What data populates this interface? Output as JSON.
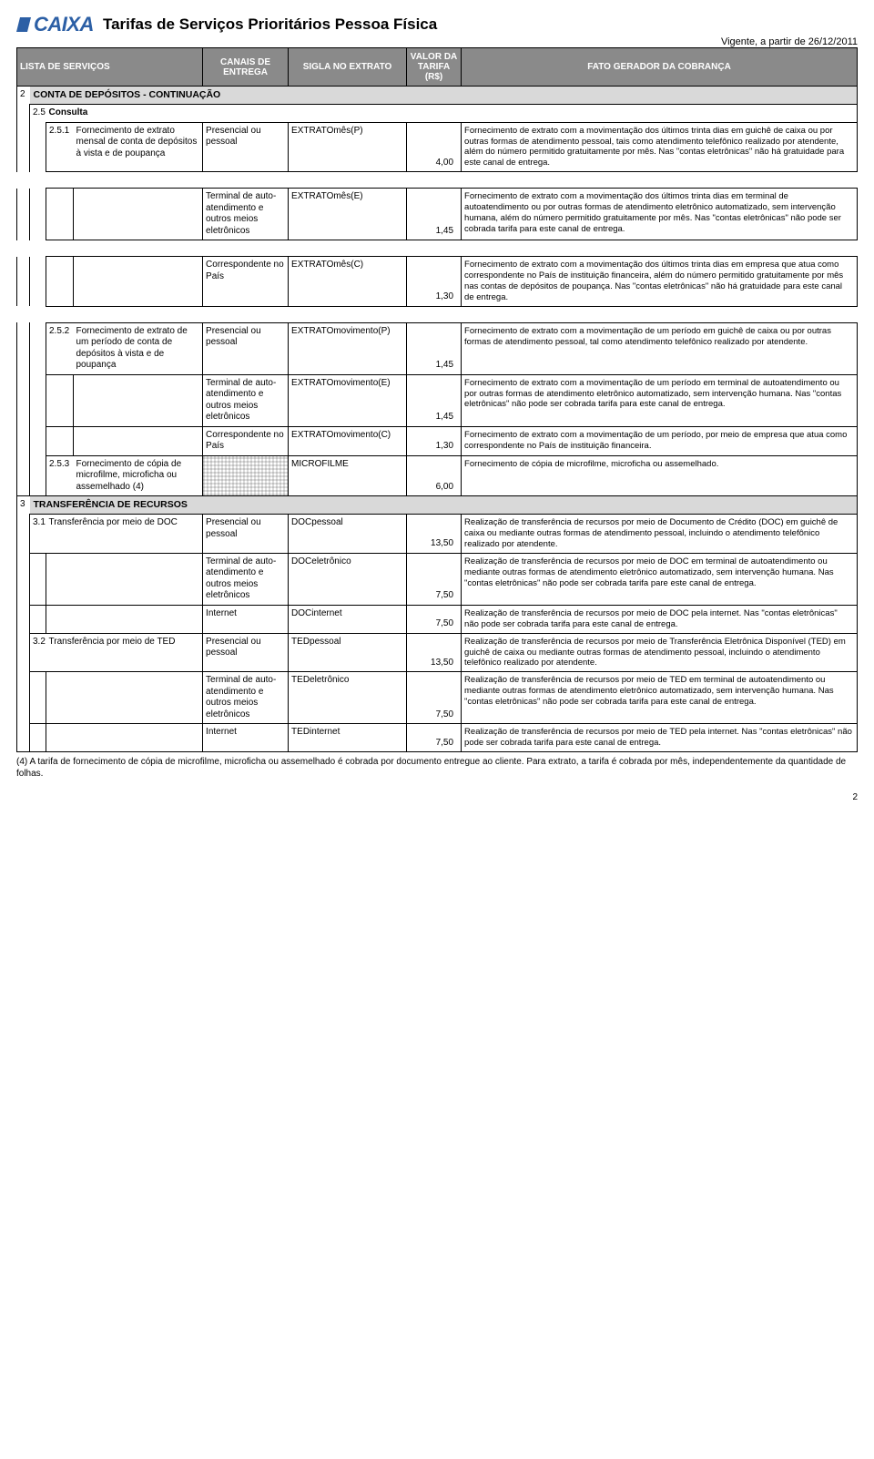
{
  "logo_text": "CAIXA",
  "doc_title": "Tarifas de Serviços Prioritários Pessoa Física",
  "vigente": "Vigente, a partir de 26/12/2011",
  "headers": {
    "lista": "LISTA DE SERVIÇOS",
    "canais": "CANAIS DE ENTREGA",
    "sigla": "SIGLA NO EXTRATO",
    "valor": "VALOR DA TARIFA (R$)",
    "fato": "FATO GERADOR DA COBRANÇA"
  },
  "sections": {
    "s2_num": "2",
    "s2_title": "CONTA DE DEPÓSITOS - CONTINUAÇÃO",
    "s25_num": "2.5",
    "s25_title": "Consulta",
    "s3_num": "3",
    "s3_title": "TRANSFERÊNCIA DE RECURSOS"
  },
  "rows": {
    "r251_num": "2.5.1",
    "r251_servico": "Fornecimento de extrato mensal de conta de depósitos à vista e de poupança",
    "canal_presencial": "Presencial ou pessoal",
    "canal_terminal": "Terminal de auto-atendimento e outros meios eletrônicos",
    "canal_correspondente": "Correspondente no País",
    "canal_internet": "Internet",
    "r251a_sigla": "EXTRATOmês(P)",
    "r251a_valor": "4,00",
    "r251a_fato": "Fornecimento de extrato com a movimentação dos últimos trinta dias em guichê de caixa ou por outras formas de atendimento pessoal, tais como atendimento telefônico realizado por atendente, além do número permitido gratuitamente por mês. Nas \"contas eletrônicas\" não há gratuidade para este canal de entrega.",
    "r251b_sigla": "EXTRATOmês(E)",
    "r251b_valor": "1,45",
    "r251b_fato": "Fornecimento de extrato com a movimentação dos últimos trinta dias em terminal de autoatendimento ou por outras formas de atendimento eletrônico automatizado, sem intervenção humana, além do número permitido gratuitamente por mês. Nas \"contas eletrônicas\" não pode ser cobrada tarifa para este canal de entrega.",
    "r251c_sigla": "EXTRATOmês(C)",
    "r251c_valor": "1,30",
    "r251c_fato": "Fornecimento de extrato com a movimentação dos últimos trinta dias em empresa que atua como correspondente no País de instituição financeira, além do número permitido gratuitamente por mês nas contas de depósitos de poupança. Nas \"contas eletrônicas\" não há gratuidade para este canal de entrega.",
    "r252_num": "2.5.2",
    "r252_servico": "Fornecimento de extrato de um período de conta de depósitos à vista e de poupança",
    "r252a_sigla": "EXTRATOmovimento(P)",
    "r252a_valor": "1,45",
    "r252a_fato": "Fornecimento de extrato com a movimentação de um período em guichê de caixa ou por outras formas de atendimento pessoal, tal como atendimento telefônico realizado por atendente.",
    "r252b_sigla": "EXTRATOmovimento(E)",
    "r252b_valor": "1,45",
    "r252b_fato": "Fornecimento de extrato com a movimentação de um período em terminal de autoatendimento ou por outras formas de atendimento eletrônico automatizado, sem intervenção humana. Nas \"contas eletrônicas\" não pode ser cobrada tarifa para este canal de entrega.",
    "r252c_sigla": "EXTRATOmovimento(C)",
    "r252c_valor": "1,30",
    "r252c_fato": "Fornecimento de extrato com a movimentação de um período, por meio de empresa que atua como correspondente no País de instituição financeira.",
    "r253_num": "2.5.3",
    "r253_servico": "Fornecimento de cópia de microfilme, microficha ou assemelhado (4)",
    "r253_sigla": "MICROFILME",
    "r253_valor": "6,00",
    "r253_fato": "Fornecimento de cópia de microfilme, microficha ou assemelhado.",
    "r31_num": "3.1",
    "r31_servico": "Transferência por meio de DOC",
    "r31a_sigla": "DOCpessoal",
    "r31a_valor": "13,50",
    "r31a_fato": "Realização de transferência de recursos por meio de Documento de Crédito (DOC) em guichê de caixa ou mediante outras formas de atendimento pessoal, incluindo o atendimento telefônico realizado por atendente.",
    "r31b_sigla": "DOCeletrônico",
    "r31b_valor": "7,50",
    "r31b_fato": "Realização de transferência de recursos por meio de DOC em terminal de autoatendimento ou mediante outras formas de atendimento eletrônico automatizado, sem intervenção humana. Nas \"contas eletrônicas\" não pode ser cobrada tarifa pare este canal de entrega.",
    "r31c_sigla": "DOCinternet",
    "r31c_valor": "7,50",
    "r31c_fato": "Realização de transferência de recursos por meio de DOC pela internet. Nas \"contas eletrônicas\" não pode ser cobrada tarifa para este canal de entrega.",
    "r32_num": "3.2",
    "r32_servico": "Transferência por meio de TED",
    "r32a_sigla": "TEDpessoal",
    "r32a_valor": "13,50",
    "r32a_fato": "Realização de transferência de recursos por meio de Transferência Eletrônica Disponível (TED) em guichê de caixa ou mediante outras formas de atendimento pessoal, incluindo o atendimento telefônico realizado por atendente.",
    "r32b_sigla": "TEDeletrônico",
    "r32b_valor": "7,50",
    "r32b_fato": "Realização de transferência de recursos por meio de TED em terminal de autoatendimento ou mediante outras formas de atendimento eletrônico automatizado, sem intervenção humana. Nas \"contas eletrônicas\" não pode ser cobrada tarifa para este canal de entrega.",
    "r32c_sigla": "TEDinternet",
    "r32c_valor": "7,50",
    "r32c_fato": "Realização de transferência de recursos por meio de TED pela internet. Nas \"contas eletrônicas\" não pode ser cobrada tarifa para este canal de entrega."
  },
  "footnote": "(4) A tarifa de fornecimento de cópia de microfilme, microficha ou assemelhado é cobrada por documento entregue ao cliente. Para extrato, a tarifa é cobrada por mês, independentemente da quantidade de folhas.",
  "page_number": "2"
}
